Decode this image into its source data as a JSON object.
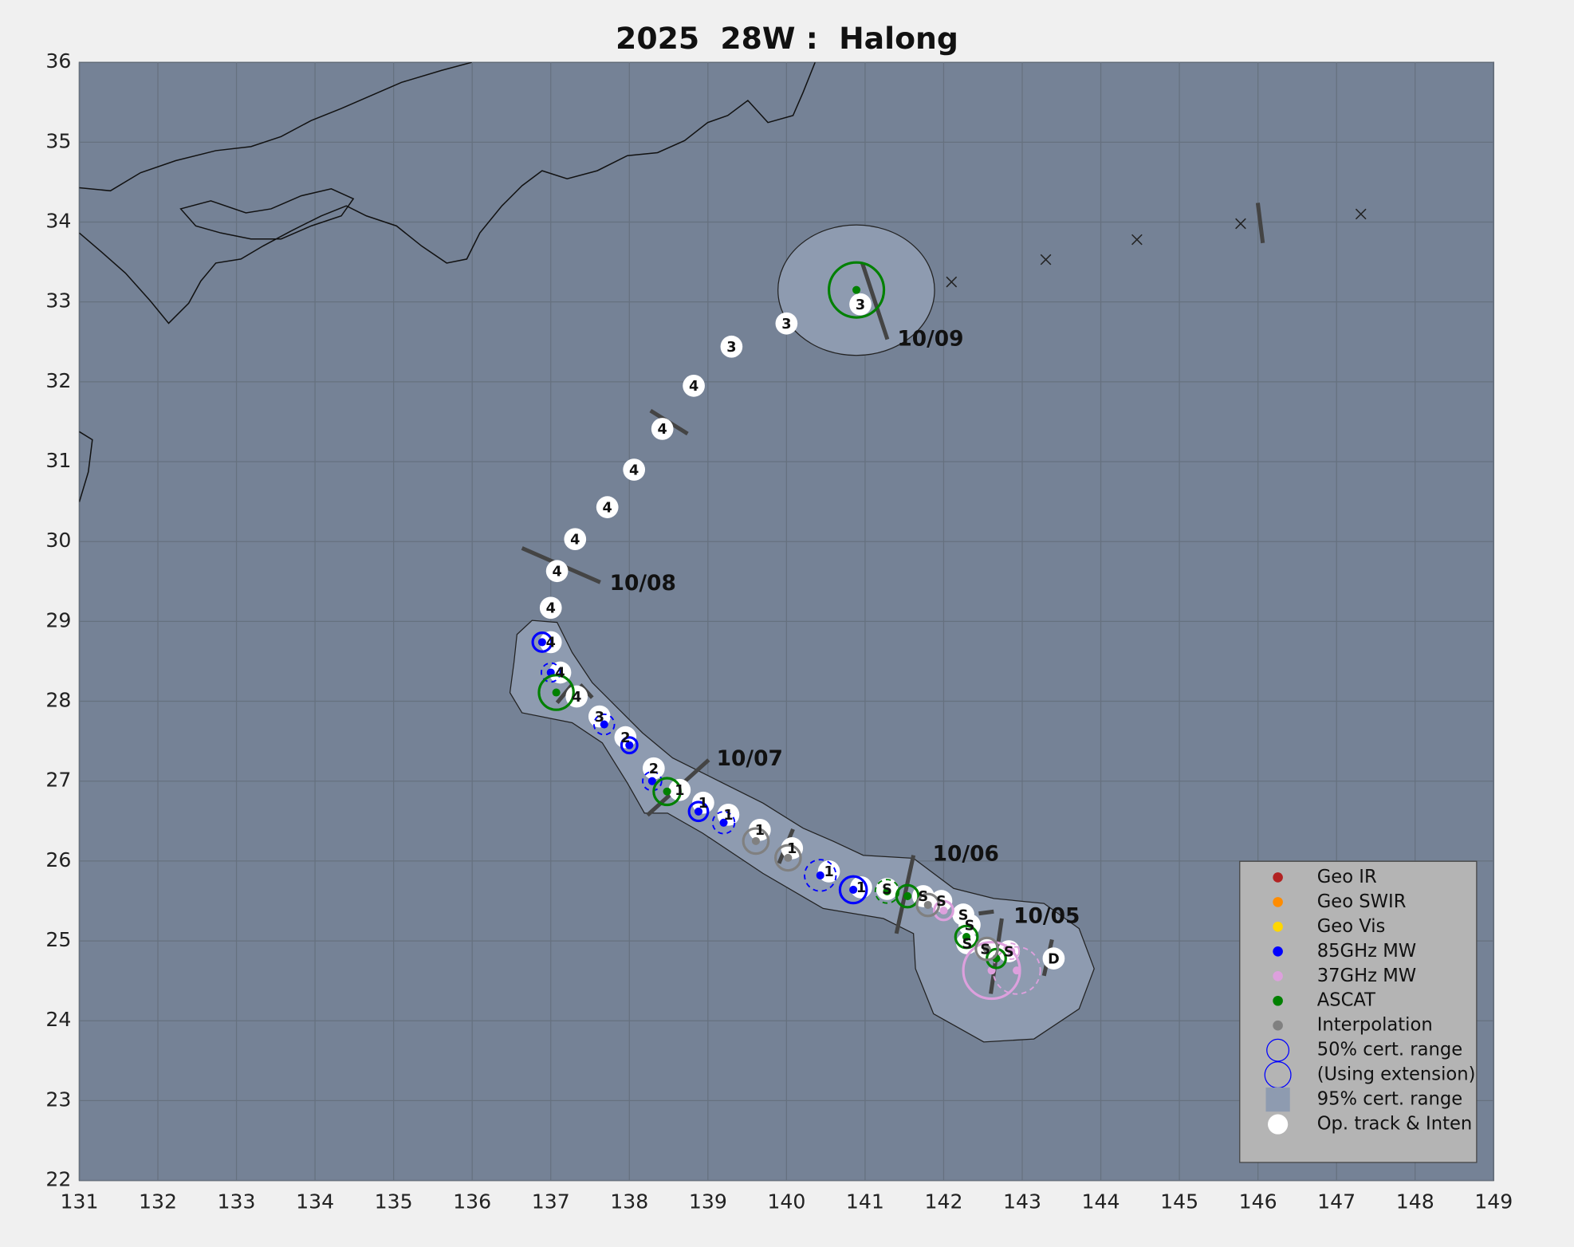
{
  "chart_data": {
    "type": "track",
    "title": "2025  28W :  Halong",
    "xlim": [
      131,
      149
    ],
    "ylim": [
      22,
      36
    ],
    "xticks": [
      131,
      132,
      133,
      134,
      135,
      136,
      137,
      138,
      139,
      140,
      141,
      142,
      143,
      144,
      145,
      146,
      147,
      148,
      149
    ],
    "yticks": [
      22,
      23,
      24,
      25,
      26,
      27,
      28,
      29,
      30,
      31,
      32,
      33,
      34,
      35,
      36
    ],
    "grid": true,
    "track": {
      "x": [
        143.4,
        142.83,
        142.53,
        142.3,
        142.33,
        142.25,
        141.97,
        141.74,
        141.28,
        140.95,
        140.54,
        140.07,
        139.66,
        139.26,
        138.94,
        138.64,
        138.31,
        137.95,
        137.62,
        137.33,
        137.12,
        137.0,
        137.0,
        137.08,
        137.31,
        137.72,
        138.06,
        138.42,
        138.82,
        139.3,
        140.0,
        140.94
      ],
      "y": [
        24.78,
        24.87,
        24.9,
        24.97,
        25.2,
        25.33,
        25.5,
        25.56,
        25.65,
        25.67,
        25.87,
        26.16,
        26.39,
        26.58,
        26.73,
        26.89,
        27.16,
        27.55,
        27.81,
        28.06,
        28.36,
        28.74,
        29.17,
        29.63,
        30.03,
        30.43,
        30.9,
        31.41,
        31.95,
        32.44,
        32.73,
        32.97
      ],
      "intensity": [
        "D",
        "S",
        "S",
        "S",
        "S",
        "S",
        "S",
        "S",
        "S",
        "1",
        "1",
        "1",
        "1",
        "1",
        "1",
        "1",
        "2",
        "2",
        "3",
        "4",
        "4",
        "4",
        "4",
        "4",
        "4",
        "4",
        "4",
        "4",
        "4",
        "3",
        "3",
        "3"
      ]
    },
    "extrapolated": {
      "x": [
        142.1,
        143.3,
        144.46,
        145.78,
        147.31
      ],
      "y": [
        33.25,
        33.53,
        33.78,
        33.98,
        34.1
      ]
    },
    "dates": [
      {
        "label": "10/05",
        "x": 142.89,
        "y": 25.3
      },
      {
        "label": "10/06",
        "x": 141.86,
        "y": 26.08
      },
      {
        "label": "10/07",
        "x": 139.11,
        "y": 27.27
      },
      {
        "label": "10/08",
        "x": 137.75,
        "y": 29.47
      },
      {
        "label": "10/09",
        "x": 141.41,
        "y": 32.53
      }
    ],
    "series": [
      {
        "name": "Geo IR",
        "color": "#b22222",
        "x": [],
        "y": [],
        "r": [],
        "extension": []
      },
      {
        "name": "Geo SWIR",
        "color": "#ff8c00",
        "x": [],
        "y": [],
        "r": [],
        "extension": []
      },
      {
        "name": "Geo Vis",
        "color": "#ffd700",
        "x": [],
        "y": [],
        "r": [],
        "extension": []
      },
      {
        "name": "85GHz MW",
        "color": "#0000ff",
        "x": [
          136.89,
          137.0,
          137.68,
          138.0,
          138.29,
          138.88,
          139.2,
          140.43,
          140.85
        ],
        "y": [
          28.74,
          28.36,
          27.71,
          27.45,
          27.0,
          26.62,
          26.48,
          25.82,
          25.64
        ],
        "r": [
          0.12,
          0.12,
          0.13,
          0.1,
          0.12,
          0.12,
          0.14,
          0.2,
          0.17
        ],
        "extension": [
          false,
          true,
          true,
          false,
          true,
          false,
          true,
          true,
          false
        ]
      },
      {
        "name": "37GHz MW",
        "color": "#dda0dd",
        "x": [
          142.0,
          142.61,
          142.93,
          142.86
        ],
        "y": [
          25.38,
          24.63,
          24.63,
          24.87
        ],
        "r": [
          0.12,
          0.36,
          0.3,
          0.1
        ],
        "extension": [
          false,
          false,
          true,
          true
        ]
      },
      {
        "name": "ASCAT",
        "color": "#008000",
        "x": [
          140.89,
          137.07,
          138.48,
          141.28,
          141.54,
          142.29,
          142.67
        ],
        "y": [
          33.15,
          28.11,
          26.87,
          25.62,
          25.56,
          25.05,
          24.78
        ],
        "r": [
          0.35,
          0.22,
          0.17,
          0.15,
          0.14,
          0.14,
          0.12
        ],
        "extension": [
          false,
          false,
          false,
          true,
          false,
          false,
          false
        ]
      },
      {
        "name": "Interpolation",
        "color": "#808080",
        "x": [
          139.61,
          140.02,
          141.8,
          142.55
        ],
        "y": [
          26.25,
          26.04,
          25.45,
          24.9
        ],
        "r": [
          0.16,
          0.16,
          0.14,
          0.14
        ],
        "extension": [
          false,
          false,
          false,
          false
        ]
      }
    ],
    "legend_extra": [
      "50% cert. range",
      "(Using extension)",
      "95% cert. range",
      "Op. track & Inten"
    ]
  }
}
